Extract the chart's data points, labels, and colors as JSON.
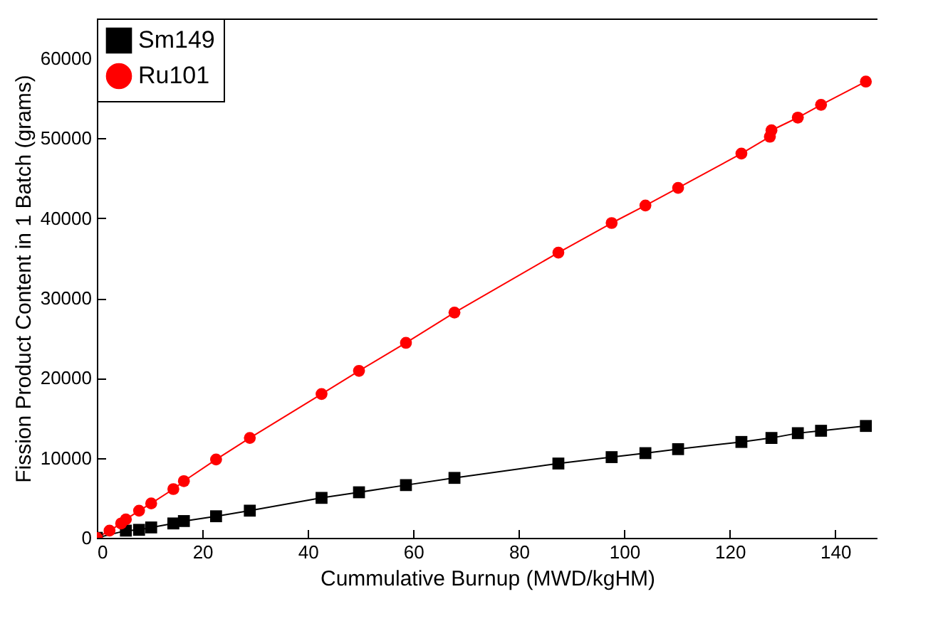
{
  "chart_data": {
    "type": "line",
    "xlabel": "Cummulative Burnup (MWD/kgHM)",
    "ylabel": "Fission Product Content in 1 Batch (grams)",
    "xlim": [
      0,
      148
    ],
    "ylim": [
      0,
      65000
    ],
    "xticks": [
      0,
      20,
      40,
      60,
      80,
      100,
      120,
      140
    ],
    "yticks": [
      0,
      10000,
      20000,
      30000,
      40000,
      50000,
      60000
    ],
    "grid": false,
    "legend": "top left",
    "x": [
      0,
      2.4,
      4.6,
      5.5,
      8,
      10.3,
      14.5,
      16.5,
      22.6,
      29,
      42.6,
      49.7,
      58.6,
      67.8,
      87.5,
      97.6,
      104,
      110.2,
      122.2,
      127.6,
      127.9,
      132.9,
      137.3,
      145.8
    ],
    "series": [
      {
        "name": "Sm149",
        "color": "#000000",
        "marker": "square",
        "x": [
          0,
          5.5,
          8,
          10.3,
          14.5,
          16.5,
          22.6,
          29,
          42.6,
          49.7,
          58.6,
          67.8,
          87.5,
          97.6,
          104,
          110.2,
          122.2,
          127.9,
          132.9,
          137.3,
          145.8
        ],
        "values": [
          0,
          900,
          1000,
          1300,
          1800,
          2100,
          2700,
          3400,
          5000,
          5700,
          6600,
          7500,
          9300,
          10100,
          10600,
          11100,
          12000,
          12500,
          13100,
          13400,
          14000
        ]
      },
      {
        "name": "Ru101",
        "color": "#ff0000",
        "marker": "circle",
        "values": [
          0,
          900,
          1800,
          2300,
          3400,
          4300,
          6100,
          7100,
          9800,
          12500,
          18000,
          20900,
          24400,
          28200,
          35700,
          39400,
          41600,
          43800,
          48100,
          50200,
          51000,
          52600,
          54200,
          57100
        ]
      }
    ]
  }
}
